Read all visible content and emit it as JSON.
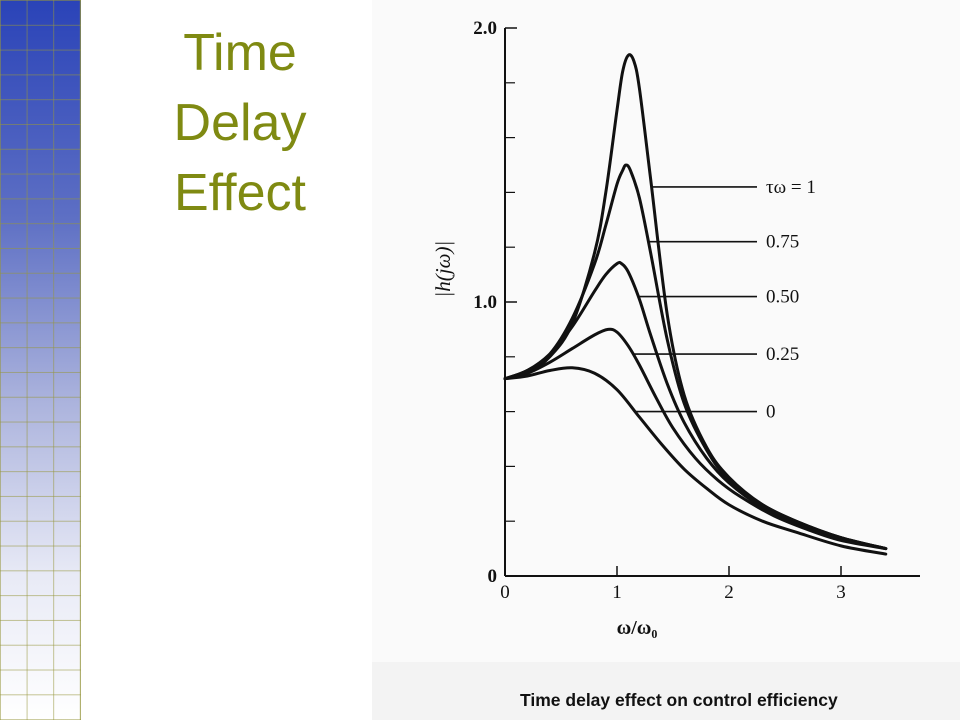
{
  "slide": {
    "title_lines": [
      "Time",
      "Delay",
      "Effect"
    ],
    "caption": "Time delay effect on control efficiency",
    "title_color": "#7f8a12"
  },
  "chart_data": {
    "type": "line",
    "xlabel": "ω/ω₀",
    "ylabel": "|h(jω)|",
    "xlim": [
      0,
      3.5
    ],
    "ylim": [
      0,
      2.0
    ],
    "x_ticks": [
      {
        "value": 0,
        "label": "0"
      },
      {
        "value": 1,
        "label": "1"
      },
      {
        "value": 2,
        "label": "2"
      },
      {
        "value": 3,
        "label": "3"
      }
    ],
    "y_ticks": [
      {
        "value": 0,
        "label": "0"
      },
      {
        "value": 1.0,
        "label": "1.0"
      },
      {
        "value": 2.0,
        "label": "2.0"
      }
    ],
    "y_minor_ticks": [
      0.2,
      0.4,
      0.6,
      0.8,
      1.2,
      1.4,
      1.6,
      1.8
    ],
    "grid": false,
    "series": [
      {
        "name": "τω = 1",
        "peak_x": 1.1,
        "peak_y": 1.9,
        "x": [
          0,
          0.2,
          0.4,
          0.6,
          0.8,
          0.9,
          1.0,
          1.05,
          1.1,
          1.15,
          1.2,
          1.3,
          1.45,
          1.6,
          1.8,
          2.0,
          2.3,
          2.6,
          3.0,
          3.4
        ],
        "y": [
          0.72,
          0.74,
          0.8,
          0.92,
          1.18,
          1.4,
          1.7,
          1.84,
          1.9,
          1.88,
          1.78,
          1.45,
          0.95,
          0.66,
          0.47,
          0.36,
          0.26,
          0.2,
          0.14,
          0.1
        ]
      },
      {
        "name": "0.75",
        "peak_x": 1.08,
        "peak_y": 1.5,
        "x": [
          0,
          0.2,
          0.4,
          0.6,
          0.8,
          0.9,
          1.0,
          1.05,
          1.08,
          1.12,
          1.2,
          1.3,
          1.45,
          1.6,
          1.8,
          2.0,
          2.3,
          2.6,
          3.0,
          3.4
        ],
        "y": [
          0.72,
          0.75,
          0.81,
          0.94,
          1.14,
          1.28,
          1.43,
          1.48,
          1.5,
          1.48,
          1.38,
          1.18,
          0.86,
          0.63,
          0.46,
          0.35,
          0.26,
          0.2,
          0.14,
          0.1
        ]
      },
      {
        "name": "0.50",
        "peak_x": 1.04,
        "peak_y": 1.14,
        "x": [
          0,
          0.2,
          0.4,
          0.6,
          0.8,
          0.9,
          1.0,
          1.04,
          1.1,
          1.2,
          1.3,
          1.45,
          1.6,
          1.8,
          2.0,
          2.3,
          2.6,
          3.0,
          3.4
        ],
        "y": [
          0.72,
          0.75,
          0.81,
          0.91,
          1.04,
          1.1,
          1.14,
          1.14,
          1.11,
          1.01,
          0.88,
          0.7,
          0.56,
          0.43,
          0.34,
          0.25,
          0.19,
          0.14,
          0.1
        ]
      },
      {
        "name": "0.25",
        "peak_x": 0.92,
        "peak_y": 0.9,
        "x": [
          0,
          0.2,
          0.4,
          0.6,
          0.8,
          0.92,
          1.0,
          1.1,
          1.2,
          1.35,
          1.5,
          1.7,
          1.9,
          2.1,
          2.4,
          2.7,
          3.0,
          3.4
        ],
        "y": [
          0.72,
          0.74,
          0.78,
          0.83,
          0.88,
          0.9,
          0.89,
          0.84,
          0.77,
          0.65,
          0.54,
          0.43,
          0.35,
          0.29,
          0.22,
          0.17,
          0.13,
          0.1
        ]
      },
      {
        "name": "0",
        "peak_x": 0.6,
        "peak_y": 0.76,
        "x": [
          0,
          0.2,
          0.4,
          0.6,
          0.8,
          1.0,
          1.2,
          1.4,
          1.6,
          1.8,
          2.0,
          2.3,
          2.6,
          3.0,
          3.4
        ],
        "y": [
          0.72,
          0.73,
          0.75,
          0.76,
          0.74,
          0.68,
          0.58,
          0.48,
          0.39,
          0.32,
          0.26,
          0.2,
          0.16,
          0.11,
          0.08
        ]
      }
    ],
    "annotations": [
      {
        "text": "τω = 1",
        "series": 0,
        "anchor_y": 1.42
      },
      {
        "text": "0.75",
        "series": 1,
        "anchor_y": 1.22
      },
      {
        "text": "0.50",
        "series": 2,
        "anchor_y": 1.02
      },
      {
        "text": "0.25",
        "series": 3,
        "anchor_y": 0.81
      },
      {
        "text": "0",
        "series": 4,
        "anchor_y": 0.6
      }
    ]
  }
}
